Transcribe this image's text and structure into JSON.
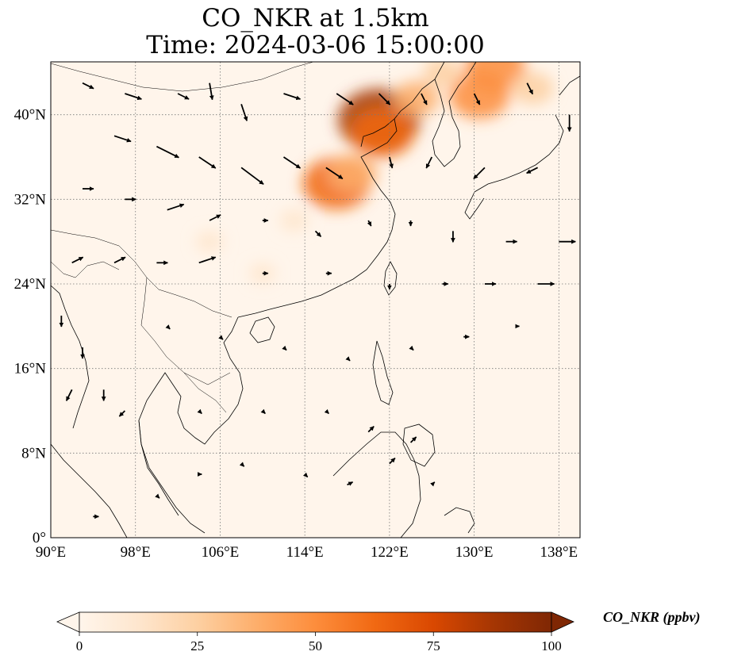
{
  "title": {
    "line1": "CO_NKR at 1.5km",
    "line2": "Time: 2024-03-06 15:00:00"
  },
  "colorbar": {
    "label": "CO_NKR (ppbv)",
    "min": 0,
    "max": 100,
    "ticks": [
      "0",
      "25",
      "50",
      "75",
      "100"
    ],
    "extend": "both",
    "colormap": [
      "#fff5eb",
      "#fee6ce",
      "#fdd0a2",
      "#fdae6b",
      "#fd8d3c",
      "#f16913",
      "#d94801",
      "#a63603",
      "#7f2704"
    ]
  },
  "map": {
    "lon_range": [
      90,
      140
    ],
    "lat_range": [
      0,
      45
    ],
    "lon_ticks": [
      "90°E",
      "98°E",
      "106°E",
      "114°E",
      "122°E",
      "130°E",
      "138°E"
    ],
    "lat_ticks": [
      "0°",
      "8°N",
      "16°N",
      "24°N",
      "32°N",
      "40°N"
    ],
    "gridlines": true,
    "background_color": "#fff5eb",
    "plumes": [
      {
        "lon": 117.0,
        "lat": 33.5,
        "value": 65
      },
      {
        "lon": 118.5,
        "lat": 34.5,
        "value": 40
      },
      {
        "lon": 121.0,
        "lat": 39.5,
        "value": 85
      },
      {
        "lon": 121.3,
        "lat": 38.3,
        "value": 60
      },
      {
        "lon": 124.5,
        "lat": 41.5,
        "value": 35
      },
      {
        "lon": 130.5,
        "lat": 41.8,
        "value": 55
      },
      {
        "lon": 132.0,
        "lat": 44.5,
        "value": 55
      },
      {
        "lon": 135.5,
        "lat": 42.5,
        "value": 30
      },
      {
        "lon": 127.0,
        "lat": 44.0,
        "value": 25
      },
      {
        "lon": 113.0,
        "lat": 30.0,
        "value": 12
      },
      {
        "lon": 105.0,
        "lat": 28.0,
        "value": 10
      },
      {
        "lon": 110.0,
        "lat": 25.0,
        "value": 8
      }
    ],
    "wind_vectors": [
      {
        "lon": 93,
        "lat": 43,
        "u": 2,
        "v": -1
      },
      {
        "lon": 97,
        "lat": 42,
        "u": 3,
        "v": -1
      },
      {
        "lon": 102,
        "lat": 42,
        "u": 2,
        "v": -1
      },
      {
        "lon": 105,
        "lat": 43,
        "u": 0.5,
        "v": -3
      },
      {
        "lon": 108,
        "lat": 41,
        "u": 1,
        "v": -3
      },
      {
        "lon": 112,
        "lat": 42,
        "u": 3,
        "v": -1
      },
      {
        "lon": 117,
        "lat": 42,
        "u": 3,
        "v": -2
      },
      {
        "lon": 121,
        "lat": 42,
        "u": 2,
        "v": -2
      },
      {
        "lon": 125,
        "lat": 42,
        "u": 1,
        "v": -2
      },
      {
        "lon": 130,
        "lat": 42,
        "u": 1,
        "v": -2
      },
      {
        "lon": 135,
        "lat": 43,
        "u": 1,
        "v": -2
      },
      {
        "lon": 139,
        "lat": 40,
        "u": 0,
        "v": -3
      },
      {
        "lon": 96,
        "lat": 38,
        "u": 3,
        "v": -1
      },
      {
        "lon": 100,
        "lat": 37,
        "u": 4,
        "v": -2
      },
      {
        "lon": 104,
        "lat": 36,
        "u": 3,
        "v": -2
      },
      {
        "lon": 108,
        "lat": 35,
        "u": 4,
        "v": -3
      },
      {
        "lon": 112,
        "lat": 36,
        "u": 3,
        "v": -2
      },
      {
        "lon": 116,
        "lat": 35,
        "u": 3,
        "v": -2
      },
      {
        "lon": 122,
        "lat": 36,
        "u": 0.5,
        "v": -2
      },
      {
        "lon": 126,
        "lat": 36,
        "u": -1,
        "v": -2
      },
      {
        "lon": 131,
        "lat": 35,
        "u": -2,
        "v": -2
      },
      {
        "lon": 136,
        "lat": 35,
        "u": -2,
        "v": -1
      },
      {
        "lon": 93,
        "lat": 33,
        "u": 2,
        "v": 0
      },
      {
        "lon": 97,
        "lat": 32,
        "u": 2,
        "v": 0
      },
      {
        "lon": 101,
        "lat": 31,
        "u": 3,
        "v": 1
      },
      {
        "lon": 105,
        "lat": 30,
        "u": 2,
        "v": 1
      },
      {
        "lon": 110,
        "lat": 30,
        "u": 1,
        "v": 0
      },
      {
        "lon": 115,
        "lat": 29,
        "u": 1,
        "v": -1
      },
      {
        "lon": 120,
        "lat": 30,
        "u": 0.5,
        "v": -1
      },
      {
        "lon": 124,
        "lat": 30,
        "u": 0,
        "v": -1
      },
      {
        "lon": 128,
        "lat": 29,
        "u": 0,
        "v": -2
      },
      {
        "lon": 133,
        "lat": 28,
        "u": 2,
        "v": 0
      },
      {
        "lon": 138,
        "lat": 28,
        "u": 3,
        "v": 0
      },
      {
        "lon": 92,
        "lat": 26,
        "u": 2,
        "v": 1
      },
      {
        "lon": 96,
        "lat": 26,
        "u": 2,
        "v": 1
      },
      {
        "lon": 100,
        "lat": 26,
        "u": 2,
        "v": 0
      },
      {
        "lon": 104,
        "lat": 26,
        "u": 3,
        "v": 1
      },
      {
        "lon": 110,
        "lat": 25,
        "u": 1,
        "v": 0
      },
      {
        "lon": 116,
        "lat": 25,
        "u": 1,
        "v": 0
      },
      {
        "lon": 122,
        "lat": 24,
        "u": 0,
        "v": -1
      },
      {
        "lon": 127,
        "lat": 24,
        "u": 1,
        "v": 0
      },
      {
        "lon": 131,
        "lat": 24,
        "u": 2,
        "v": 0
      },
      {
        "lon": 136,
        "lat": 24,
        "u": 3,
        "v": 0
      },
      {
        "lon": 91,
        "lat": 21,
        "u": 0,
        "v": -2
      },
      {
        "lon": 93,
        "lat": 18,
        "u": 0,
        "v": -2
      },
      {
        "lon": 92,
        "lat": 14,
        "u": -1,
        "v": -2
      },
      {
        "lon": 95,
        "lat": 14,
        "u": 0,
        "v": -2
      },
      {
        "lon": 97,
        "lat": 12,
        "u": -1,
        "v": -1
      },
      {
        "lon": 101,
        "lat": 20,
        "u": 0.5,
        "v": -0.5
      },
      {
        "lon": 106,
        "lat": 19,
        "u": 0.5,
        "v": -0.5
      },
      {
        "lon": 112,
        "lat": 18,
        "u": 0.5,
        "v": -0.5
      },
      {
        "lon": 118,
        "lat": 17,
        "u": 0.5,
        "v": -0.5
      },
      {
        "lon": 124,
        "lat": 18,
        "u": 0.5,
        "v": -0.5
      },
      {
        "lon": 129,
        "lat": 19,
        "u": 1,
        "v": 0
      },
      {
        "lon": 134,
        "lat": 20,
        "u": 0.5,
        "v": 0
      },
      {
        "lon": 104,
        "lat": 12,
        "u": 0.5,
        "v": -0.5
      },
      {
        "lon": 110,
        "lat": 12,
        "u": 0.5,
        "v": -0.5
      },
      {
        "lon": 116,
        "lat": 12,
        "u": 0.5,
        "v": -0.5
      },
      {
        "lon": 120,
        "lat": 10,
        "u": 1,
        "v": 1
      },
      {
        "lon": 124,
        "lat": 9,
        "u": 1,
        "v": 1
      },
      {
        "lon": 108,
        "lat": 7,
        "u": 0.5,
        "v": -0.5
      },
      {
        "lon": 114,
        "lat": 6,
        "u": 0.5,
        "v": -0.5
      },
      {
        "lon": 118,
        "lat": 5,
        "u": 1,
        "v": 0.5
      },
      {
        "lon": 122,
        "lat": 7,
        "u": 1,
        "v": 1
      },
      {
        "lon": 100,
        "lat": 4,
        "u": 0.5,
        "v": -0.5
      },
      {
        "lon": 94,
        "lat": 2,
        "u": 1,
        "v": 0
      },
      {
        "lon": 126,
        "lat": 5,
        "u": 0.5,
        "v": 0.5
      },
      {
        "lon": 104,
        "lat": 6,
        "u": 0.5,
        "v": 0
      }
    ]
  }
}
